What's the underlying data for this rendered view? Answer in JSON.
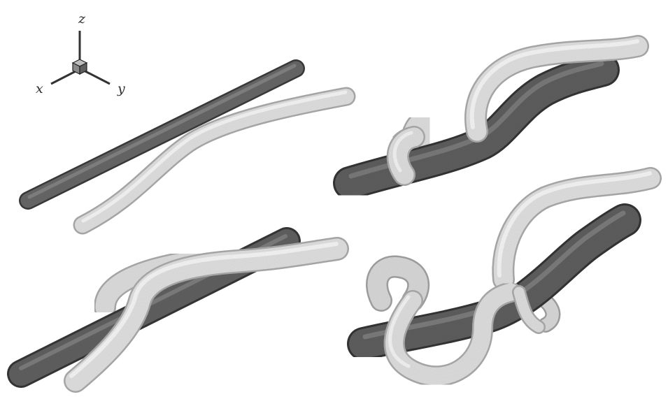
{
  "axes": {
    "x": "x",
    "y": "y",
    "z": "z"
  },
  "colors": {
    "dark_tube": "#606060",
    "dark_tube_shadow": "#353535",
    "dark_tube_highlight": "#8a8a8a",
    "light_tube": "#dcdcdc",
    "light_tube_shadow": "#a8a8a8",
    "light_tube_highlight": "#f7f7f7",
    "axis": "#333333"
  },
  "panels": [
    {
      "id": "top-left"
    },
    {
      "id": "top-right"
    },
    {
      "id": "bottom-left"
    },
    {
      "id": "bottom-right"
    }
  ]
}
